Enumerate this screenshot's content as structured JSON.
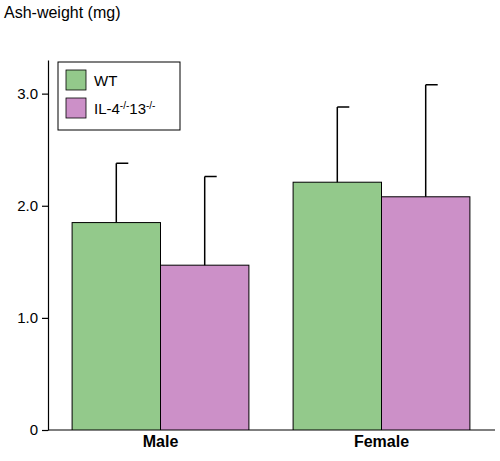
{
  "chart_data": {
    "type": "bar",
    "y_label": "Ash-weight (mg)",
    "categories": [
      "Male",
      "Female"
    ],
    "series": [
      {
        "name": "WT",
        "color": "#93c98b",
        "values": [
          1.85,
          2.21
        ],
        "errors": [
          0.53,
          0.67
        ]
      },
      {
        "name": "IL-4-/-13-/-",
        "color": "#cc90c8",
        "values": [
          1.47,
          2.08
        ],
        "errors": [
          0.79,
          1.0
        ]
      }
    ],
    "ylim": [
      0,
      3.3
    ],
    "yticks": [
      0,
      {
        "value": 1,
        "label": "1.0"
      },
      {
        "value": 2,
        "label": "2.0"
      },
      {
        "value": 3,
        "label": "3.0"
      }
    ],
    "grid": false,
    "legend": "upper left"
  }
}
